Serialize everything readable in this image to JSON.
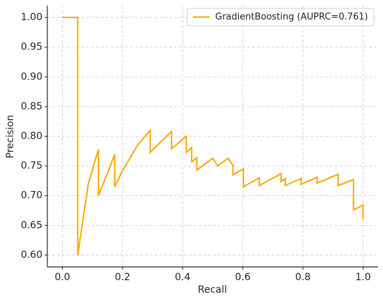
{
  "chart_data": {
    "type": "line",
    "x_label": "Recall",
    "y_label": "Precision",
    "x": [
      0,
      0.051,
      0.051,
      0.086,
      0.104,
      0.12,
      0.12,
      0.15,
      0.174,
      0.174,
      0.2,
      0.25,
      0.292,
      0.292,
      0.363,
      0.363,
      0.412,
      0.412,
      0.43,
      0.43,
      0.447,
      0.447,
      0.5,
      0.516,
      0.551,
      0.567,
      0.567,
      0.602,
      0.602,
      0.655,
      0.655,
      0.727,
      0.727,
      0.741,
      0.741,
      0.794,
      0.794,
      0.847,
      0.847,
      0.917,
      0.917,
      0.968,
      0.968,
      1.0,
      1.0
    ],
    "series": [
      {
        "name": "GradientBoosting (AUPRC=0.761)",
        "color": "#ffa500",
        "values": [
          1.0,
          1.0,
          0.6,
          0.719,
          0.751,
          0.778,
          0.7,
          0.738,
          0.769,
          0.715,
          0.742,
          0.785,
          0.81,
          0.773,
          0.808,
          0.779,
          0.8,
          0.773,
          0.781,
          0.757,
          0.764,
          0.743,
          0.763,
          0.75,
          0.763,
          0.751,
          0.735,
          0.745,
          0.715,
          0.73,
          0.717,
          0.737,
          0.724,
          0.729,
          0.717,
          0.729,
          0.719,
          0.731,
          0.721,
          0.736,
          0.717,
          0.727,
          0.676,
          0.684,
          0.659
        ]
      }
    ],
    "xlim": [
      -0.05,
      1.05
    ],
    "ylim": [
      0.58,
      1.02
    ],
    "xticks": [
      {
        "value": 0,
        "label": "0.0"
      },
      {
        "value": 0.2,
        "label": "0.2"
      },
      {
        "value": 0.4,
        "label": "0.4"
      },
      {
        "value": 0.6,
        "label": "0.6"
      },
      {
        "value": 0.8,
        "label": "0.8"
      },
      {
        "value": 1,
        "label": "1.0"
      }
    ],
    "yticks": [
      {
        "value": 0.6,
        "label": "0.60"
      },
      {
        "value": 0.65,
        "label": "0.65"
      },
      {
        "value": 0.7,
        "label": "0.70"
      },
      {
        "value": 0.75,
        "label": "0.75"
      },
      {
        "value": 0.8,
        "label": "0.80"
      },
      {
        "value": 0.85,
        "label": "0.85"
      },
      {
        "value": 0.9,
        "label": "0.90"
      },
      {
        "value": 0.95,
        "label": "0.95"
      },
      {
        "value": 1,
        "label": "1.00"
      }
    ],
    "grid": true,
    "legend": "upper right"
  }
}
